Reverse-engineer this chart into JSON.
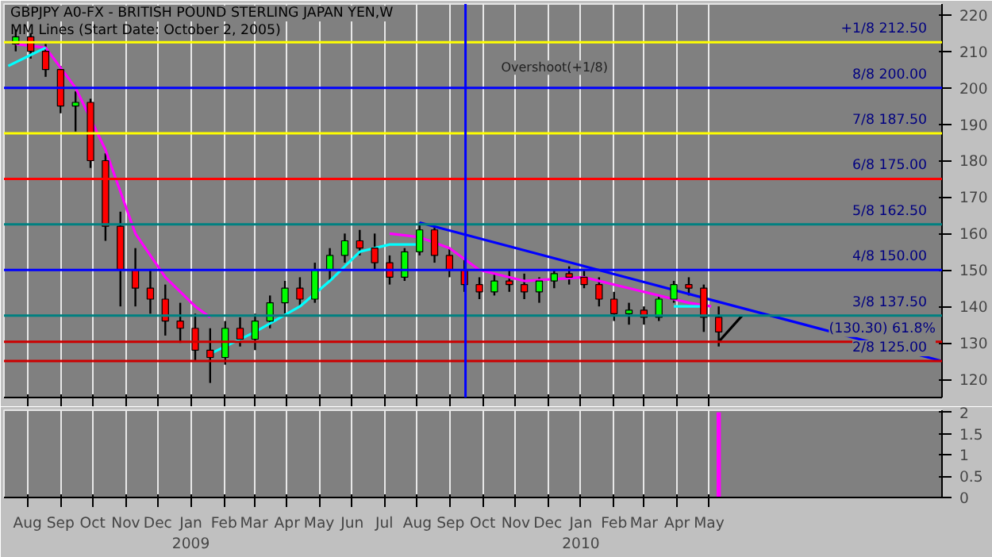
{
  "chart_data": [
    {
      "type": "candlestick",
      "title": "GBPJPY A0-FX - BRITISH POUND STERLING JAPAN YEN,W",
      "subtitle": "MM Lines (Start Date: October 2, 2005)",
      "x": [
        "2008-07-21",
        "2008-08-04",
        "2008-08-18",
        "2008-09-01",
        "2008-09-15",
        "2008-09-29",
        "2008-10-13",
        "2008-10-27",
        "2008-11-10",
        "2008-11-24",
        "2008-12-08",
        "2008-12-22",
        "2009-01-05",
        "2009-01-19",
        "2009-02-02",
        "2009-02-16",
        "2009-03-02",
        "2009-03-16",
        "2009-03-30",
        "2009-04-13",
        "2009-04-27",
        "2009-05-11",
        "2009-05-25",
        "2009-06-08",
        "2009-06-22",
        "2009-07-06",
        "2009-07-20",
        "2009-08-03",
        "2009-08-17",
        "2009-08-31",
        "2009-09-14",
        "2009-09-28",
        "2009-10-12",
        "2009-10-26",
        "2009-11-09",
        "2009-11-23",
        "2009-12-07",
        "2009-12-21",
        "2010-01-04",
        "2010-01-18",
        "2010-02-01",
        "2010-02-15",
        "2010-03-01",
        "2010-03-15",
        "2010-03-29",
        "2010-04-12",
        "2010-04-26",
        "2010-05-10"
      ],
      "ohlc": [
        [
          212,
          216,
          210,
          214
        ],
        [
          214,
          215,
          208,
          210
        ],
        [
          210,
          212,
          203,
          205
        ],
        [
          205,
          206,
          193,
          195
        ],
        [
          195,
          199,
          188,
          196
        ],
        [
          196,
          197,
          178,
          180
        ],
        [
          180,
          182,
          158,
          162
        ],
        [
          162,
          166,
          140,
          150
        ],
        [
          150,
          156,
          140,
          145
        ],
        [
          145,
          150,
          138,
          142
        ],
        [
          142,
          146,
          132,
          136
        ],
        [
          136,
          141,
          130,
          134
        ],
        [
          134,
          138,
          125,
          128
        ],
        [
          128,
          134,
          119,
          126
        ],
        [
          126,
          136,
          124,
          134
        ],
        [
          134,
          137,
          129,
          131
        ],
        [
          131,
          138,
          128,
          136
        ],
        [
          136,
          143,
          134,
          141
        ],
        [
          141,
          147,
          138,
          145
        ],
        [
          145,
          148,
          140,
          142
        ],
        [
          142,
          152,
          141,
          150
        ],
        [
          150,
          156,
          147,
          154
        ],
        [
          154,
          160,
          152,
          158
        ],
        [
          158,
          161,
          154,
          156
        ],
        [
          156,
          160,
          150,
          152
        ],
        [
          152,
          154,
          146,
          148
        ],
        [
          148,
          156,
          147,
          155
        ],
        [
          155,
          163,
          154,
          161
        ],
        [
          161,
          162,
          152,
          154
        ],
        [
          154,
          156,
          148,
          150
        ],
        [
          150,
          153,
          144,
          146
        ],
        [
          146,
          148,
          142,
          144
        ],
        [
          144,
          149,
          143,
          147
        ],
        [
          147,
          150,
          144,
          146
        ],
        [
          146,
          149,
          142,
          144
        ],
        [
          144,
          148,
          141,
          147
        ],
        [
          147,
          150,
          145,
          149
        ],
        [
          149,
          151,
          146,
          148
        ],
        [
          148,
          150,
          145,
          146
        ],
        [
          146,
          148,
          140,
          142
        ],
        [
          142,
          144,
          136,
          138
        ],
        [
          138,
          141,
          135,
          139
        ],
        [
          139,
          140,
          135,
          137
        ],
        [
          137,
          143,
          136,
          142
        ],
        [
          142,
          147,
          141,
          146
        ],
        [
          146,
          148,
          143,
          145
        ],
        [
          145,
          146,
          133,
          137
        ],
        [
          137,
          140,
          129,
          133
        ]
      ],
      "colors": [
        "#00ff00",
        "#ff0000",
        "#ff0000",
        "#ff0000",
        "#00ff00",
        "#ff0000",
        "#ff0000",
        "#ff0000",
        "#ff0000",
        "#ff0000",
        "#ff0000",
        "#ff0000",
        "#ff0000",
        "#ff0000",
        "#00ff00",
        "#ff0000",
        "#00ff00",
        "#00ff00",
        "#00ff00",
        "#ff0000",
        "#00ff00",
        "#00ff00",
        "#00ff00",
        "#ff0000",
        "#ff0000",
        "#ff0000",
        "#00ff00",
        "#00ff00",
        "#ff0000",
        "#ff0000",
        "#ff0000",
        "#ff0000",
        "#00ff00",
        "#ff0000",
        "#ff0000",
        "#00ff00",
        "#00ff00",
        "#ff0000",
        "#ff0000",
        "#ff0000",
        "#ff0000",
        "#00ff00",
        "#ff0000",
        "#00ff00",
        "#00ff00",
        "#ff0000",
        "#ff0000",
        "#ff0000"
      ],
      "series": [
        {
          "type": "line",
          "color": "#ff00ff",
          "x": [
            "2008-07-21",
            "2008-08-18",
            "2008-09-15",
            "2008-10-13",
            "2008-11-10",
            "2008-12-08",
            "2009-01-05",
            "2009-01-19"
          ],
          "values": [
            212,
            211,
            200,
            183,
            160,
            148,
            140,
            137
          ]
        },
        {
          "type": "line",
          "color": "#ff00ff",
          "x": [
            "2009-07-06",
            "2009-08-03",
            "2009-08-31",
            "2009-09-28",
            "2009-11-09",
            "2010-01-04",
            "2010-02-15",
            "2010-04-12",
            "2010-05-03"
          ],
          "values": [
            160,
            159,
            156,
            150,
            147,
            148,
            145,
            141,
            140
          ]
        },
        {
          "type": "line",
          "color": "#00ffff",
          "x": [
            "2008-07-14",
            "2008-08-04",
            "2008-08-18"
          ],
          "values": [
            206,
            209,
            211
          ]
        },
        {
          "type": "line",
          "color": "#00ffff",
          "x": [
            "2009-01-19",
            "2009-03-02",
            "2009-04-13",
            "2009-05-11",
            "2009-06-08",
            "2009-07-06",
            "2009-08-03"
          ],
          "values": [
            127,
            133,
            140,
            147,
            155,
            157,
            157
          ]
        },
        {
          "type": "line",
          "color": "#00ffff",
          "x": [
            "2010-03-29",
            "2010-04-26"
          ],
          "values": [
            140,
            140
          ]
        },
        {
          "type": "line",
          "color": "#0000ff",
          "x": [
            "2009-08-03",
            "2010-12-05"
          ],
          "values": [
            163,
            125
          ]
        },
        {
          "type": "line",
          "color": "#000000",
          "x": [
            "2010-05-10",
            "2010-06-01"
          ],
          "values": [
            130.3,
            137.5
          ]
        }
      ],
      "ref_lines": [
        {
          "axis": "y",
          "value": 212.5,
          "label": "+1/8   212.50",
          "color": "#ffff00"
        },
        {
          "axis": "y",
          "value": 200,
          "label": "8/8   200.00",
          "color": "#0000ff"
        },
        {
          "axis": "y",
          "value": 187.5,
          "label": "7/8   187.50",
          "color": "#ffff00"
        },
        {
          "axis": "y",
          "value": 175,
          "label": "6/8   175.00",
          "color": "#ff0000"
        },
        {
          "axis": "y",
          "value": 162.5,
          "label": "5/8   162.50",
          "color": "#008080"
        },
        {
          "axis": "y",
          "value": 150,
          "label": "4/8   150.00",
          "color": "#0000ff"
        },
        {
          "axis": "y",
          "value": 137.5,
          "label": "3/8   137.50",
          "color": "#008080"
        },
        {
          "axis": "y",
          "value": 130.3,
          "label": "(130.30) 61.8%",
          "color": "#cc0000"
        },
        {
          "axis": "y",
          "value": 125,
          "label": "2/8   125.00",
          "color": "#cc0000"
        },
        {
          "axis": "x",
          "value": "2009-09-15",
          "color": "#0000ff"
        }
      ],
      "annotations": [
        "Overshoot(+1/8)"
      ],
      "xlim": [
        "2008-07-10",
        "2010-12-05"
      ],
      "ylim": [
        115,
        223
      ],
      "yticks": [
        120,
        130,
        140,
        150,
        160,
        170,
        180,
        190,
        200,
        210,
        220
      ],
      "xticks": [
        {
          "value": "2008-08-01",
          "label": null
        },
        {
          "value": "2008-09-01",
          "label": null
        },
        {
          "value": "2008-10-01",
          "label": null
        },
        {
          "value": "2008-11-01",
          "label": null
        },
        {
          "value": "2008-12-01",
          "label": null
        },
        {
          "value": "2009-01-01",
          "label": null
        },
        {
          "value": "2009-02-01",
          "label": null
        },
        {
          "value": "2009-03-01",
          "label": null
        },
        {
          "value": "2009-04-01",
          "label": null
        },
        {
          "value": "2009-05-01",
          "label": null
        },
        {
          "value": "2009-06-01",
          "label": null
        },
        {
          "value": "2009-07-01",
          "label": null
        },
        {
          "value": "2009-08-01",
          "label": null
        },
        {
          "value": "2009-09-01",
          "label": null
        },
        {
          "value": "2009-10-01",
          "label": null
        },
        {
          "value": "2009-11-01",
          "label": null
        },
        {
          "value": "2009-12-01",
          "label": null
        },
        {
          "value": "2010-01-01",
          "label": null
        },
        {
          "value": "2010-02-01",
          "label": null
        },
        {
          "value": "2010-03-01",
          "label": null
        },
        {
          "value": "2010-04-01",
          "label": null
        },
        {
          "value": "2010-05-01",
          "label": null
        }
      ],
      "tick_labels": "y",
      "grid": "x"
    },
    {
      "type": "bar",
      "x": [
        "2010-05-10"
      ],
      "values": [
        2
      ],
      "color": "#ff00ff",
      "xlim": [
        "2008-07-10",
        "2010-12-05"
      ],
      "ylim": [
        0,
        2.05
      ],
      "yticks": [
        0,
        0.5,
        1,
        1.5,
        2
      ],
      "xticks": [
        {
          "value": "2008-08-01",
          "label": "Aug"
        },
        {
          "value": "2008-09-01",
          "label": "Sep"
        },
        {
          "value": "2008-10-01",
          "label": "Oct"
        },
        {
          "value": "2008-11-01",
          "label": "Nov"
        },
        {
          "value": "2008-12-01",
          "label": "Dec"
        },
        {
          "value": "2009-01-01",
          "label": "Jan\n2009"
        },
        {
          "value": "2009-02-01",
          "label": "Feb"
        },
        {
          "value": "2009-03-01",
          "label": "Mar"
        },
        {
          "value": "2009-04-01",
          "label": "Apr"
        },
        {
          "value": "2009-05-01",
          "label": "May"
        },
        {
          "value": "2009-06-01",
          "label": "Jun"
        },
        {
          "value": "2009-07-01",
          "label": "Jul"
        },
        {
          "value": "2009-08-01",
          "label": "Aug"
        },
        {
          "value": "2009-09-01",
          "label": "Sep"
        },
        {
          "value": "2009-10-01",
          "label": "Oct"
        },
        {
          "value": "2009-11-01",
          "label": "Nov"
        },
        {
          "value": "2009-12-01",
          "label": "Dec"
        },
        {
          "value": "2010-01-01",
          "label": "Jan\n2010"
        },
        {
          "value": "2010-02-01",
          "label": "Feb"
        },
        {
          "value": "2010-03-01",
          "label": "Mar"
        },
        {
          "value": "2010-04-01",
          "label": "Apr"
        },
        {
          "value": "2010-05-01",
          "label": "May"
        }
      ],
      "grid": "x"
    }
  ]
}
